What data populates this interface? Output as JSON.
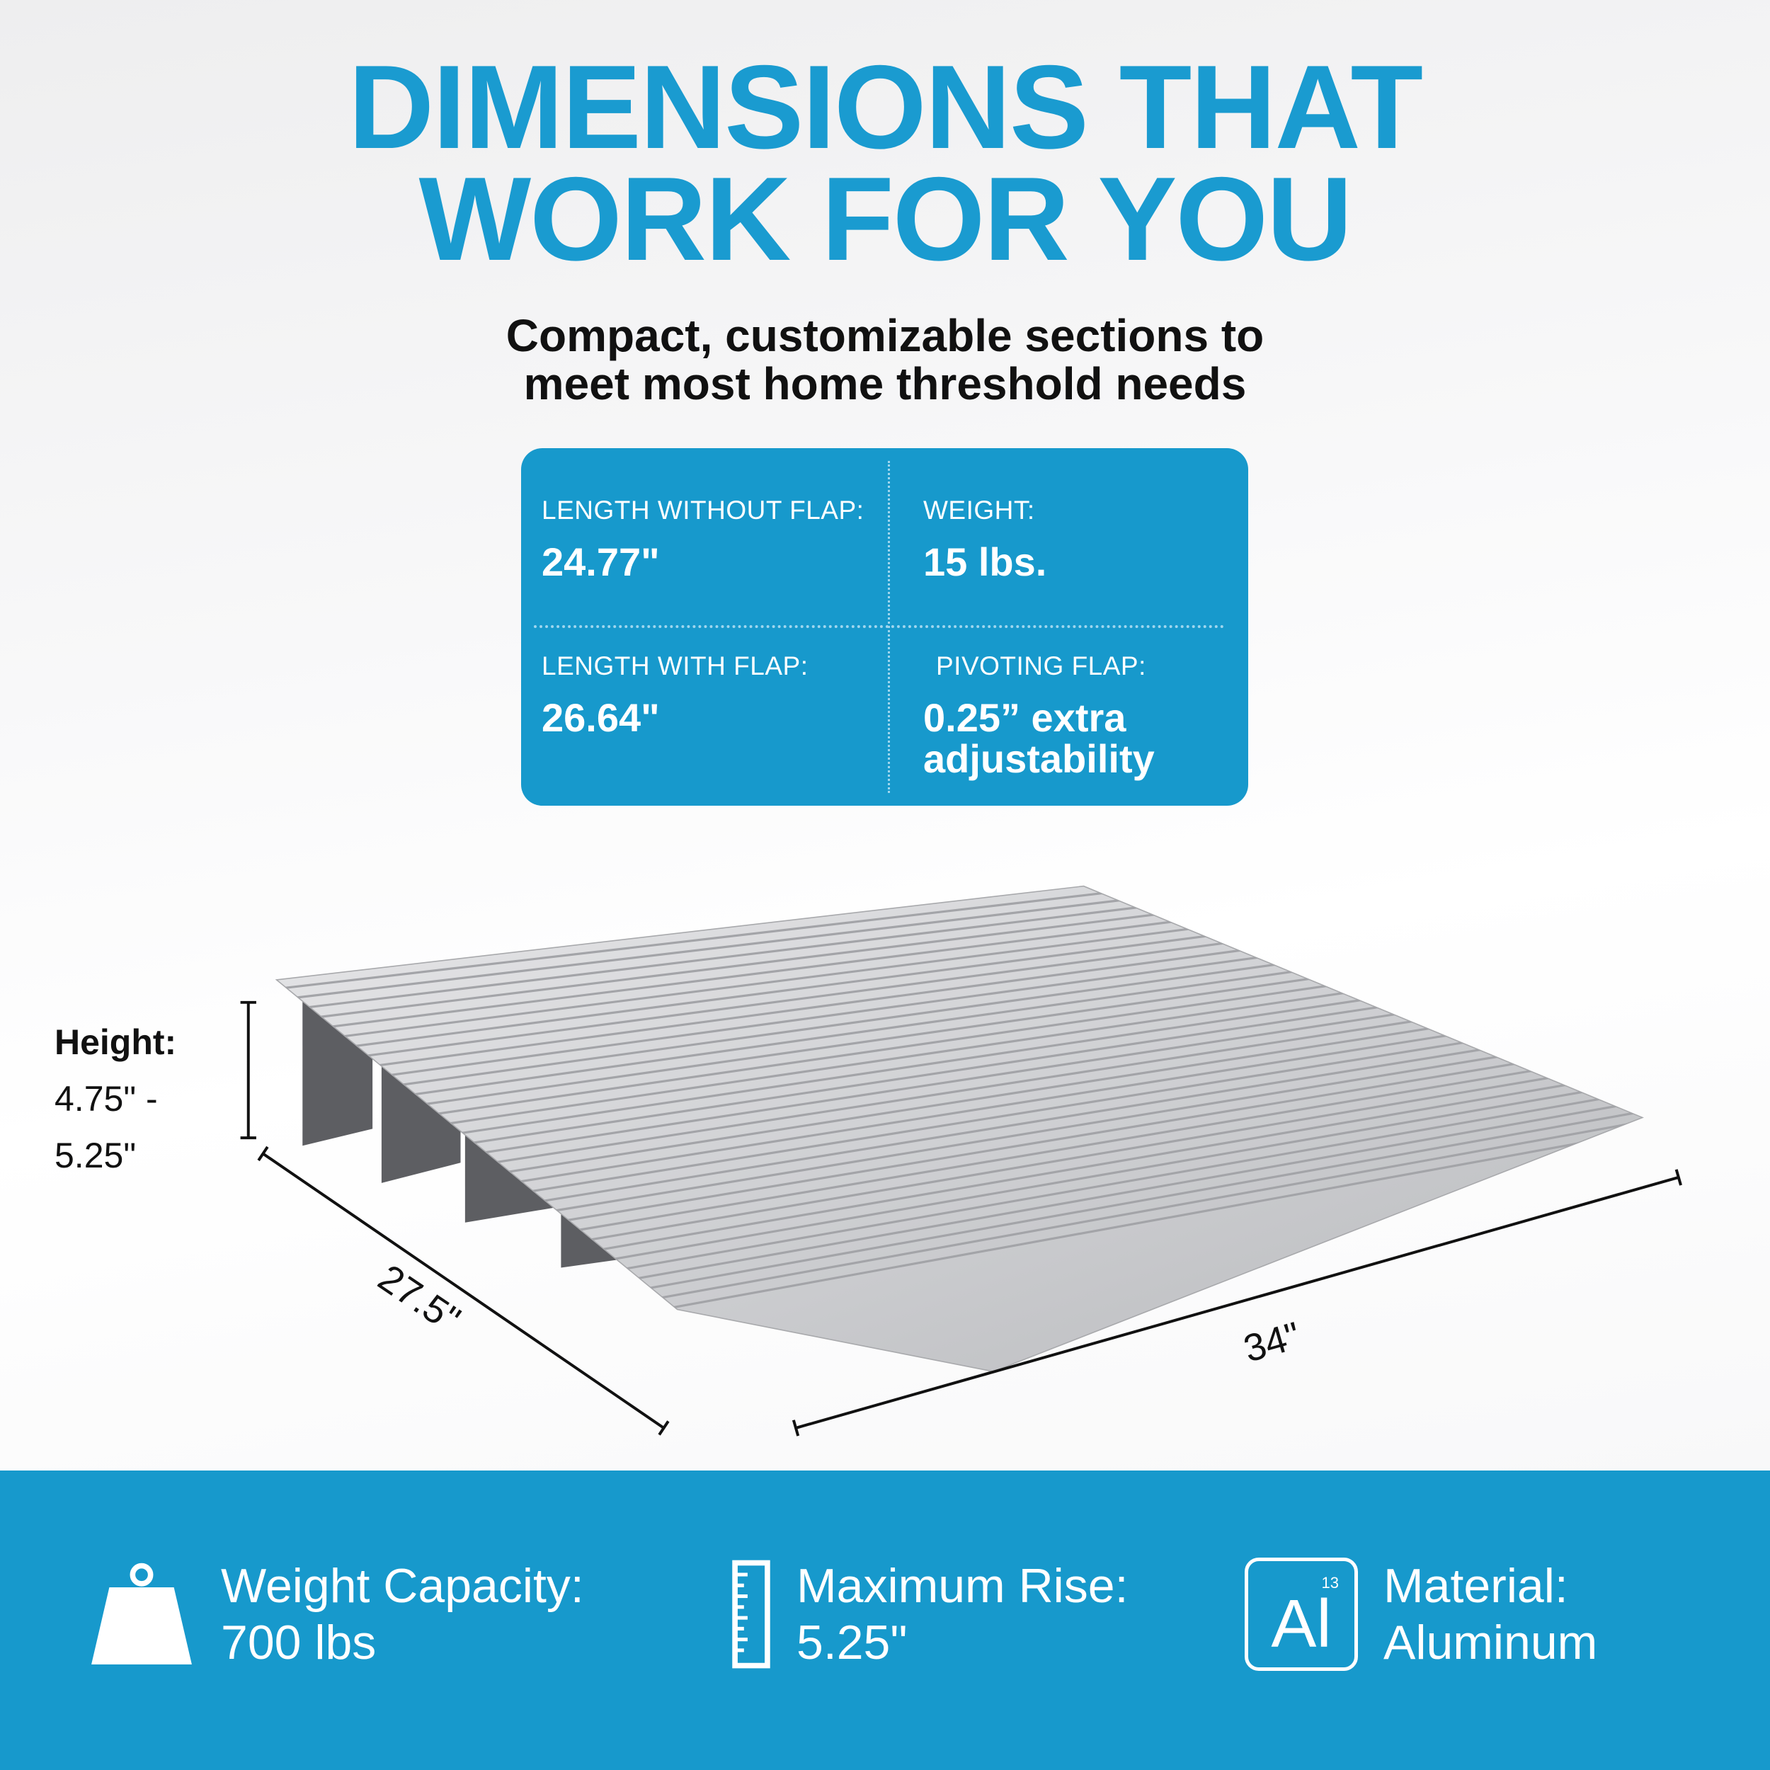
{
  "header": {
    "title_line1": "DIMENSIONS THAT",
    "title_line2": "WORK FOR YOU",
    "subtitle_line1": "Compact, customizable sections to",
    "subtitle_line2": "meet most home threshold needs"
  },
  "specs": [
    {
      "label": "LENGTH WITHOUT FLAP:",
      "value": "24.77\""
    },
    {
      "label": "WEIGHT:",
      "value": "15 lbs."
    },
    {
      "label": "LENGTH WITH FLAP:",
      "value": "26.64\""
    },
    {
      "label": "PIVOTING FLAP:",
      "value_line1": "0.25” extra",
      "value_line2": "adjustability"
    }
  ],
  "dimensions": {
    "height_label": "Height:",
    "height_line1": "4.75\" -",
    "height_line2": "5.25\"",
    "depth": "27.5\"",
    "width": "34\""
  },
  "features": [
    {
      "icon": "weight-icon",
      "line1": "Weight Capacity:",
      "line2": "700 lbs"
    },
    {
      "icon": "ruler-icon",
      "line1": "Maximum Rise:",
      "line2": "5.25\""
    },
    {
      "icon": "aluminum-element-icon",
      "symbol": "Al",
      "number": "13",
      "line1": "Material:",
      "line2": "Aluminum"
    }
  ],
  "colors": {
    "accent": "#1a9bd0",
    "band": "#1799cc",
    "text": "#111111"
  }
}
